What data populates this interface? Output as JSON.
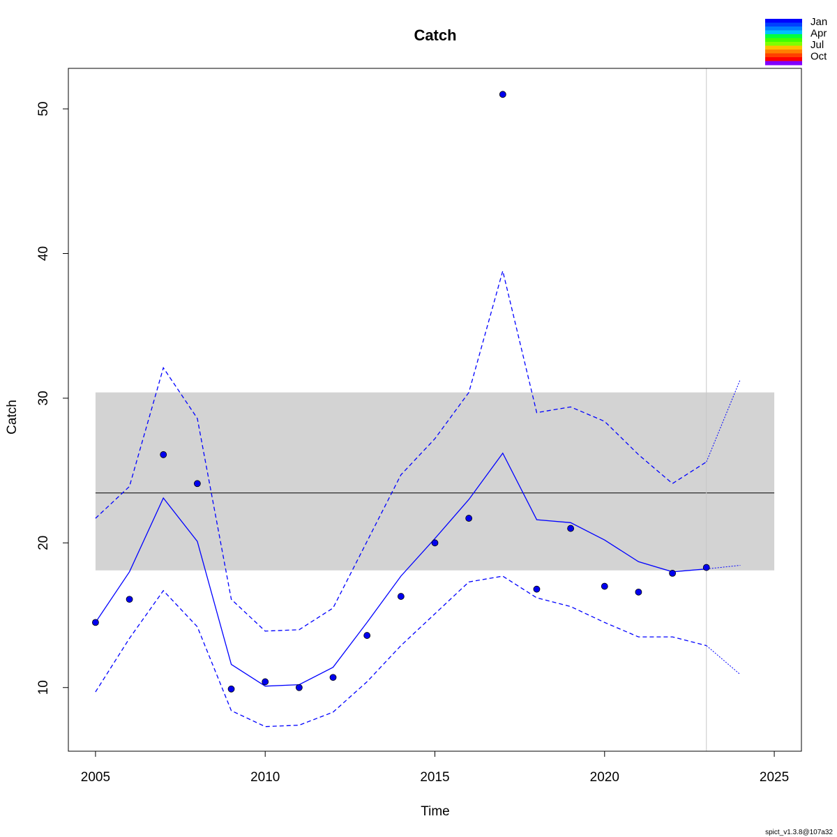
{
  "chart_data": {
    "type": "line",
    "title": "Catch",
    "xlabel": "Time",
    "ylabel": "Catch",
    "xlim": [
      2004.2,
      2025.8
    ],
    "ylim": [
      5.6,
      52.8
    ],
    "x_ticks": [
      2005,
      2010,
      2015,
      2020,
      2025
    ],
    "x_tick_labels": [
      "2005",
      "2010",
      "2015",
      "2020",
      "2025"
    ],
    "y_ticks": [
      10,
      20,
      30,
      40,
      50
    ],
    "y_tick_labels": [
      "10",
      "20",
      "30",
      "40",
      "50"
    ],
    "grid": false,
    "colors": {
      "series": "#0000ff",
      "points": "#0000ee",
      "band": "#d3d3d3",
      "mean_line": "#000000",
      "vline": "#c8c8c8"
    },
    "band": {
      "lower": 18.1,
      "upper": 30.4,
      "x_start": 2005,
      "x_end": 2025
    },
    "mean_line": 23.45,
    "vline_x": 2023,
    "observed": {
      "x": [
        2005,
        2006,
        2007,
        2008,
        2009,
        2010,
        2011,
        2012,
        2013,
        2014,
        2015,
        2016,
        2017,
        2018,
        2019,
        2020,
        2021,
        2022,
        2023
      ],
      "y": [
        14.5,
        16.1,
        26.1,
        24.1,
        9.9,
        10.4,
        10.0,
        10.7,
        13.6,
        16.3,
        20.0,
        21.7,
        51.0,
        16.8,
        21.0,
        17.0,
        16.6,
        17.9,
        18.3
      ]
    },
    "series": [
      {
        "name": "",
        "style": "solid",
        "x": [
          2005,
          2006,
          2007,
          2008,
          2009,
          2010,
          2011,
          2012,
          2013,
          2014,
          2015,
          2016,
          2017,
          2018,
          2019,
          2020,
          2021,
          2022,
          2023
        ],
        "values": [
          14.5,
          18.0,
          23.1,
          20.1,
          11.6,
          10.1,
          10.2,
          11.4,
          14.5,
          17.7,
          20.3,
          23.0,
          26.2,
          21.6,
          21.4,
          20.2,
          18.7,
          18.0,
          18.2
        ]
      },
      {
        "name": "",
        "style": "dashed",
        "x": [
          2005,
          2006,
          2007,
          2008,
          2009,
          2010,
          2011,
          2012,
          2013,
          2014,
          2015,
          2016,
          2017,
          2018,
          2019,
          2020,
          2021,
          2022,
          2023
        ],
        "values": [
          21.7,
          23.9,
          32.1,
          28.6,
          16.1,
          13.9,
          14.0,
          15.5,
          20.1,
          24.7,
          27.2,
          30.4,
          38.8,
          29.0,
          29.4,
          28.4,
          26.1,
          24.1,
          25.6
        ]
      },
      {
        "name": "",
        "style": "dashed",
        "x": [
          2005,
          2006,
          2007,
          2008,
          2009,
          2010,
          2011,
          2012,
          2013,
          2014,
          2015,
          2016,
          2017,
          2018,
          2019,
          2020,
          2021,
          2022,
          2023
        ],
        "values": [
          9.7,
          13.4,
          16.7,
          14.2,
          8.4,
          7.3,
          7.4,
          8.3,
          10.4,
          12.9,
          15.1,
          17.3,
          17.7,
          16.2,
          15.6,
          14.5,
          13.5,
          13.5,
          12.9
        ]
      },
      {
        "name": "",
        "style": "dotted",
        "x": [
          2023,
          2024
        ],
        "values": [
          18.2,
          18.45
        ]
      },
      {
        "name": "",
        "style": "dotted",
        "x": [
          2023,
          2024
        ],
        "values": [
          25.6,
          31.3
        ]
      },
      {
        "name": "",
        "style": "dotted",
        "x": [
          2023,
          2024
        ],
        "values": [
          12.9,
          10.9
        ]
      }
    ],
    "legend": {
      "placement": "top-right",
      "labels": [
        "Jan",
        "Apr",
        "Jul",
        "Oct"
      ],
      "colors": [
        "#0000ff",
        "#0040ff",
        "#007fff",
        "#00bfff",
        "#00ff40",
        "#40ff00",
        "#80ff00",
        "#ffbf00",
        "#ff8000",
        "#ff4000",
        "#ff0000",
        "#8000ff"
      ]
    }
  },
  "footer": "spict_v1.3.8@107a32"
}
